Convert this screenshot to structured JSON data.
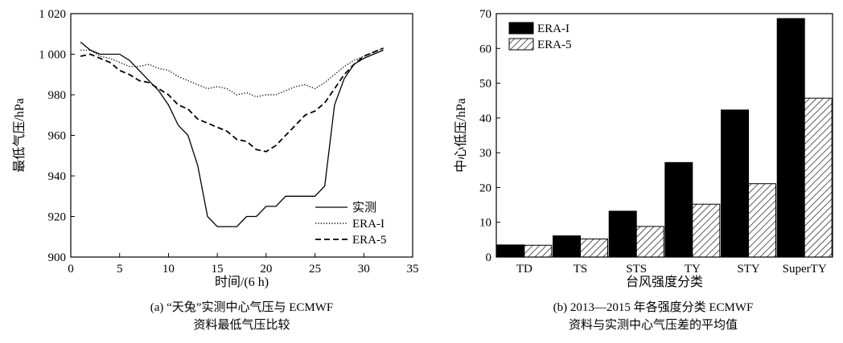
{
  "chart_data": [
    {
      "type": "line",
      "caption_line1": "(a) “天兔”实测中心气压与 ECMWF",
      "caption_line2": "资料最低气压比较",
      "xlabel": "时间/(6 h)",
      "ylabel": "最低气压/hPa",
      "xlim": [
        0,
        35
      ],
      "ylim": [
        900,
        1020
      ],
      "xticks": [
        "0",
        "5",
        "10",
        "15",
        "20",
        "25",
        "30",
        "35"
      ],
      "yticks": [
        "900",
        "920",
        "940",
        "960",
        "980",
        "1 000",
        "1 020"
      ],
      "legend_position": "lower-right",
      "series": [
        {
          "name": "实测",
          "style": "solid",
          "x": [
            1,
            2,
            3,
            4,
            5,
            6,
            7,
            8,
            9,
            10,
            11,
            12,
            13,
            14,
            15,
            16,
            17,
            18,
            19,
            20,
            21,
            22,
            23,
            24,
            25,
            26,
            27,
            28,
            29,
            30,
            31,
            32
          ],
          "y": [
            1006,
            1002,
            1000,
            1000,
            1000,
            997,
            992,
            987,
            982,
            975,
            965,
            960,
            945,
            920,
            915,
            915,
            915,
            920,
            920,
            925,
            925,
            930,
            930,
            930,
            930,
            935,
            975,
            988,
            995,
            998,
            1000,
            1002
          ]
        },
        {
          "name": "ERA-I",
          "style": "dotted",
          "x": [
            1,
            2,
            3,
            4,
            5,
            6,
            7,
            8,
            9,
            10,
            11,
            12,
            13,
            14,
            15,
            16,
            17,
            18,
            19,
            20,
            21,
            22,
            23,
            24,
            25,
            26,
            27,
            28,
            29,
            30,
            31,
            32
          ],
          "y": [
            1002,
            1002,
            999,
            998,
            996,
            994,
            994,
            995,
            993,
            992,
            989,
            987,
            985,
            983,
            984,
            983,
            980,
            981,
            979,
            980,
            980,
            982,
            984,
            985,
            983,
            986,
            990,
            994,
            997,
            999,
            1001,
            1003
          ]
        },
        {
          "name": "ERA-5",
          "style": "dashed",
          "x": [
            1,
            2,
            3,
            4,
            5,
            6,
            7,
            8,
            9,
            10,
            11,
            12,
            13,
            14,
            15,
            16,
            17,
            18,
            19,
            20,
            21,
            22,
            23,
            24,
            25,
            26,
            27,
            28,
            29,
            30,
            31,
            32
          ],
          "y": [
            999,
            1000,
            998,
            996,
            992,
            990,
            987,
            986,
            983,
            980,
            975,
            973,
            968,
            966,
            964,
            962,
            958,
            957,
            953,
            952,
            955,
            960,
            965,
            970,
            972,
            976,
            983,
            990,
            995,
            999,
            1001,
            1003
          ]
        }
      ]
    },
    {
      "type": "bar",
      "caption_line1": "(b) 2013—2015 年各强度分类 ECMWF",
      "caption_line2": "资料与实测中心气压差的平均值",
      "xlabel": "台风强度分类",
      "ylabel": "中心低压/hPa",
      "ylim": [
        0,
        70
      ],
      "yticks": [
        "0",
        "10",
        "20",
        "30",
        "40",
        "50",
        "60",
        "70"
      ],
      "legend_position": "top-left",
      "categories": [
        "TD",
        "TS",
        "STS",
        "TY",
        "STY",
        "SuperTY"
      ],
      "series": [
        {
          "name": "ERA-I",
          "fill": "solid",
          "color": "#000000",
          "values": [
            3.5,
            6.1,
            13.2,
            27.2,
            42.3,
            68.6
          ]
        },
        {
          "name": "ERA-5",
          "fill": "hatched",
          "color": "#000000",
          "values": [
            3.4,
            5.2,
            8.8,
            15.2,
            21.1,
            45.7
          ]
        }
      ]
    }
  ]
}
